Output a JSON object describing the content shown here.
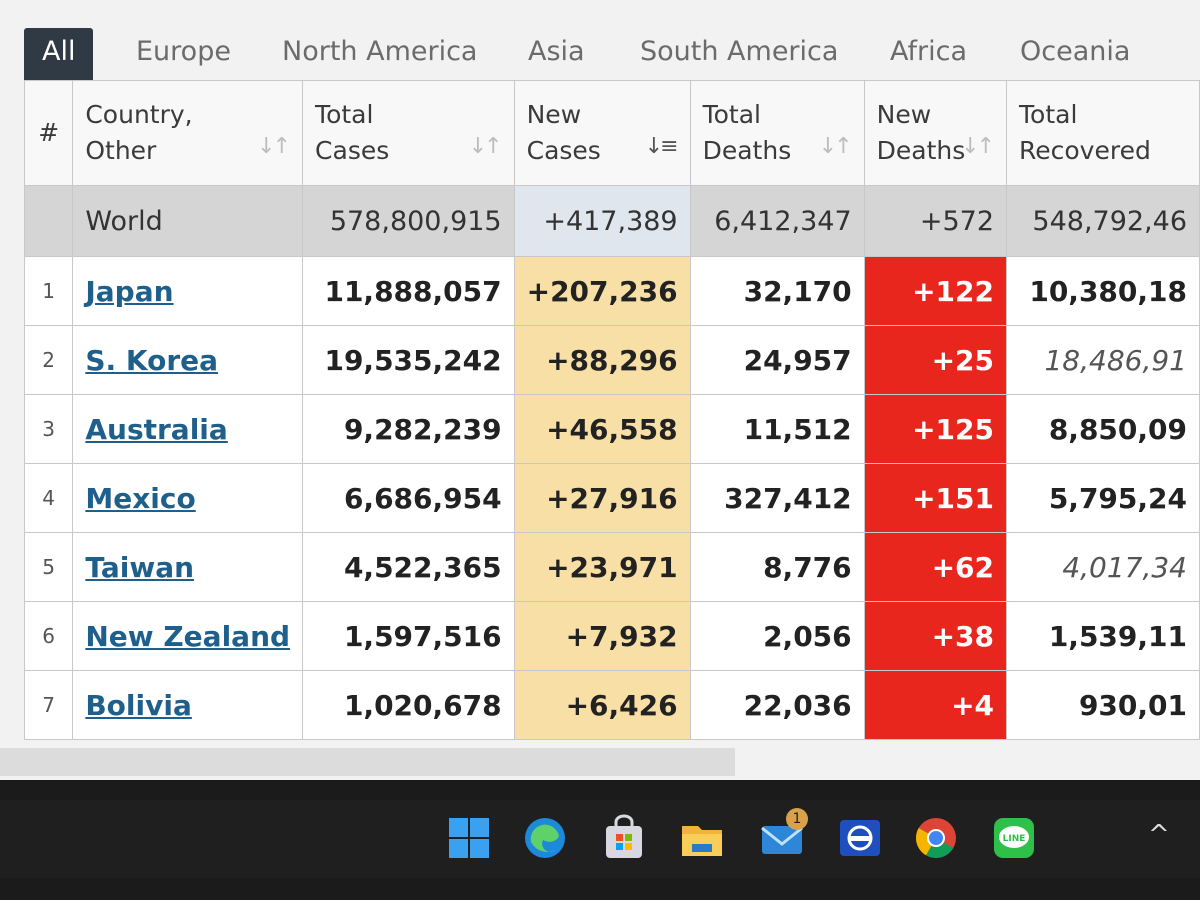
{
  "tabs": [
    "All",
    "Europe",
    "North America",
    "Asia",
    "South America",
    "Africa",
    "Oceania"
  ],
  "active_tab": "All",
  "columns": {
    "rank": "#",
    "country": [
      "Country,",
      "Other"
    ],
    "total_cases": [
      "Total",
      "Cases"
    ],
    "new_cases": [
      "New",
      "Cases"
    ],
    "total_deaths": [
      "Total",
      "Deaths"
    ],
    "new_deaths": [
      "New",
      "Deaths"
    ],
    "total_recovered": [
      "Total",
      "Recovered"
    ]
  },
  "world": {
    "country": "World",
    "total_cases": "578,800,915",
    "new_cases": "+417,389",
    "total_deaths": "6,412,347",
    "new_deaths": "+572",
    "total_recovered": "548,792,46"
  },
  "rows": [
    {
      "rank": "1",
      "country": "Japan",
      "total_cases": "11,888,057",
      "new_cases": "+207,236",
      "total_deaths": "32,170",
      "new_deaths": "+122",
      "total_recovered": "10,380,18"
    },
    {
      "rank": "2",
      "country": "S. Korea",
      "total_cases": "19,535,242",
      "new_cases": "+88,296",
      "total_deaths": "24,957",
      "new_deaths": "+25",
      "total_recovered": "18,486,91"
    },
    {
      "rank": "3",
      "country": "Australia",
      "total_cases": "9,282,239",
      "new_cases": "+46,558",
      "total_deaths": "11,512",
      "new_deaths": "+125",
      "total_recovered": "8,850,09"
    },
    {
      "rank": "4",
      "country": "Mexico",
      "total_cases": "6,686,954",
      "new_cases": "+27,916",
      "total_deaths": "327,412",
      "new_deaths": "+151",
      "total_recovered": "5,795,24"
    },
    {
      "rank": "5",
      "country": "Taiwan",
      "total_cases": "4,522,365",
      "new_cases": "+23,971",
      "total_deaths": "8,776",
      "new_deaths": "+62",
      "total_recovered": "4,017,34"
    },
    {
      "rank": "6",
      "country": "New Zealand",
      "total_cases": "1,597,516",
      "new_cases": "+7,932",
      "total_deaths": "2,056",
      "new_deaths": "+38",
      "total_recovered": "1,539,11"
    },
    {
      "rank": "7",
      "country": "Bolivia",
      "total_cases": "1,020,678",
      "new_cases": "+6,426",
      "total_deaths": "22,036",
      "new_deaths": "+4",
      "total_recovered": "930,01"
    }
  ],
  "taskbar": {
    "icons": [
      "windows-start-icon",
      "edge-browser-icon",
      "microsoft-store-icon",
      "file-explorer-icon",
      "mail-icon",
      "app-icon",
      "chrome-icon",
      "line-app-icon"
    ],
    "mail_badge": "1",
    "line_label": "LINE",
    "tray_caret": "^"
  },
  "colors": {
    "new_cases_bg": "#f7dfa6",
    "new_deaths_bg": "#e8261d",
    "active_tab_bg": "#2f3a44",
    "link": "#1f5f8c"
  }
}
